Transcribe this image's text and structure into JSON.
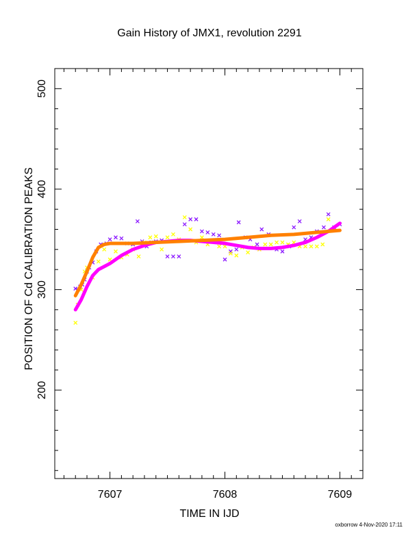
{
  "chart_data": {
    "type": "scatter",
    "title": "Gain History of JMX1, revolution 2291",
    "xlabel": "TIME IN IJD",
    "ylabel": "POSITION OF Cd CALIBRATION PEAKS",
    "xlim": [
      7606.52,
      7609.2
    ],
    "ylim": [
      112,
      520
    ],
    "x_ticks": [
      7607,
      7608,
      7609
    ],
    "y_ticks": [
      200,
      300,
      400,
      500
    ],
    "grid": false,
    "footer": "oxborrow  4-Nov-2020 17:11",
    "colors": {
      "purple": "#8c1aff",
      "yellow": "#ffff00",
      "magenta": "#ff00ff",
      "orange": "#ff8000"
    },
    "series": [
      {
        "marker": "x",
        "color": "#8c1aff",
        "points": [
          [
            7606.7,
            301
          ],
          [
            7606.72,
            300
          ],
          [
            7606.74,
            303
          ],
          [
            7606.76,
            305
          ],
          [
            7606.78,
            310
          ],
          [
            7606.8,
            318
          ],
          [
            7606.82,
            322
          ],
          [
            7606.85,
            327
          ],
          [
            7606.88,
            338
          ],
          [
            7606.92,
            345
          ],
          [
            7606.97,
            346
          ],
          [
            7607.0,
            350
          ],
          [
            7607.05,
            352
          ],
          [
            7607.1,
            351
          ],
          [
            7607.15,
            346
          ],
          [
            7607.2,
            345
          ],
          [
            7607.24,
            368
          ],
          [
            7607.28,
            348
          ],
          [
            7607.32,
            343
          ],
          [
            7607.36,
            347
          ],
          [
            7607.4,
            348
          ],
          [
            7607.45,
            349
          ],
          [
            7607.5,
            333
          ],
          [
            7607.55,
            333
          ],
          [
            7607.6,
            333
          ],
          [
            7607.65,
            365
          ],
          [
            7607.7,
            370
          ],
          [
            7607.75,
            370
          ],
          [
            7607.8,
            358
          ],
          [
            7607.85,
            357
          ],
          [
            7607.9,
            355
          ],
          [
            7607.95,
            354
          ],
          [
            7608.0,
            330
          ],
          [
            7608.05,
            338
          ],
          [
            7608.1,
            340
          ],
          [
            7608.12,
            367
          ],
          [
            7608.18,
            352
          ],
          [
            7608.22,
            350
          ],
          [
            7608.28,
            345
          ],
          [
            7608.32,
            360
          ],
          [
            7608.38,
            355
          ],
          [
            7608.45,
            340
          ],
          [
            7608.5,
            338
          ],
          [
            7608.56,
            343
          ],
          [
            7608.6,
            362
          ],
          [
            7608.65,
            368
          ],
          [
            7608.7,
            350
          ],
          [
            7608.75,
            352
          ],
          [
            7608.8,
            358
          ],
          [
            7608.86,
            362
          ],
          [
            7608.9,
            375
          ],
          [
            7608.95,
            362
          ],
          [
            7609.0,
            365
          ]
        ]
      },
      {
        "marker": "x",
        "color": "#ffff00",
        "points": [
          [
            7606.7,
            267
          ],
          [
            7606.72,
            285
          ],
          [
            7606.75,
            300
          ],
          [
            7606.78,
            318
          ],
          [
            7606.8,
            322
          ],
          [
            7606.85,
            312
          ],
          [
            7606.9,
            328
          ],
          [
            7606.95,
            340
          ],
          [
            7607.0,
            330
          ],
          [
            7607.05,
            338
          ],
          [
            7607.1,
            332
          ],
          [
            7607.15,
            335
          ],
          [
            7607.2,
            340
          ],
          [
            7607.25,
            333
          ],
          [
            7607.3,
            347
          ],
          [
            7607.35,
            352
          ],
          [
            7607.4,
            353
          ],
          [
            7607.45,
            340
          ],
          [
            7607.5,
            352
          ],
          [
            7607.55,
            355
          ],
          [
            7607.6,
            350
          ],
          [
            7607.65,
            372
          ],
          [
            7607.7,
            360
          ],
          [
            7607.75,
            347
          ],
          [
            7607.8,
            352
          ],
          [
            7607.85,
            345
          ],
          [
            7607.9,
            348
          ],
          [
            7607.95,
            343
          ],
          [
            7608.0,
            343
          ],
          [
            7608.05,
            336
          ],
          [
            7608.1,
            334
          ],
          [
            7608.15,
            342
          ],
          [
            7608.2,
            337
          ],
          [
            7608.25,
            342
          ],
          [
            7608.3,
            340
          ],
          [
            7608.35,
            345
          ],
          [
            7608.4,
            345
          ],
          [
            7608.45,
            347
          ],
          [
            7608.5,
            347
          ],
          [
            7608.55,
            345
          ],
          [
            7608.6,
            347
          ],
          [
            7608.65,
            343
          ],
          [
            7608.7,
            343
          ],
          [
            7608.75,
            343
          ],
          [
            7608.8,
            343
          ],
          [
            7608.85,
            345
          ],
          [
            7608.9,
            370
          ],
          [
            7608.95,
            360
          ]
        ]
      },
      {
        "marker": "curve",
        "color": "#ff00ff",
        "points": [
          [
            7606.7,
            280
          ],
          [
            7606.75,
            290
          ],
          [
            7606.8,
            303
          ],
          [
            7606.85,
            314
          ],
          [
            7606.9,
            320
          ],
          [
            7606.95,
            323
          ],
          [
            7607.0,
            326
          ],
          [
            7607.1,
            334
          ],
          [
            7607.2,
            340
          ],
          [
            7607.3,
            344
          ],
          [
            7607.4,
            347
          ],
          [
            7607.5,
            348
          ],
          [
            7607.6,
            349
          ],
          [
            7607.7,
            349
          ],
          [
            7607.8,
            348
          ],
          [
            7607.9,
            347
          ],
          [
            7608.0,
            346
          ],
          [
            7608.1,
            344
          ],
          [
            7608.2,
            342
          ],
          [
            7608.3,
            341
          ],
          [
            7608.4,
            341
          ],
          [
            7608.5,
            342
          ],
          [
            7608.6,
            344
          ],
          [
            7608.7,
            347
          ],
          [
            7608.8,
            352
          ],
          [
            7608.9,
            358
          ],
          [
            7609.0,
            366
          ]
        ]
      },
      {
        "marker": "curve",
        "color": "#ff8000",
        "points": [
          [
            7606.7,
            294
          ],
          [
            7606.75,
            305
          ],
          [
            7606.8,
            318
          ],
          [
            7606.85,
            332
          ],
          [
            7606.9,
            342
          ],
          [
            7606.95,
            345
          ],
          [
            7607.0,
            346
          ],
          [
            7607.2,
            346
          ],
          [
            7607.4,
            347
          ],
          [
            7607.6,
            348
          ],
          [
            7607.8,
            349
          ],
          [
            7608.0,
            350
          ],
          [
            7608.2,
            352
          ],
          [
            7608.4,
            354
          ],
          [
            7608.6,
            355
          ],
          [
            7608.8,
            357
          ],
          [
            7609.0,
            359
          ]
        ]
      }
    ]
  }
}
